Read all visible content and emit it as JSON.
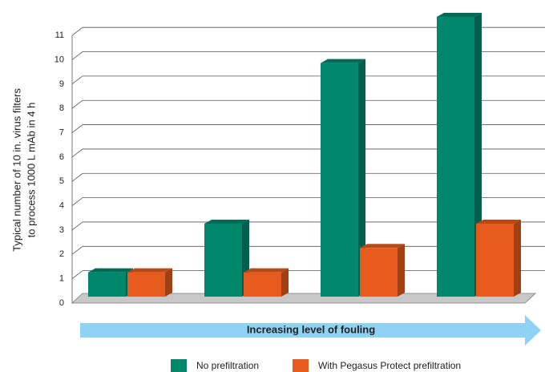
{
  "chart_data": {
    "type": "bar3d",
    "y_label": [
      "Typical number of 10 in. virus  filters",
      "to process 1000 L mAb in 4 h"
    ],
    "annotation": "Increasing level of fouling",
    "categories": [
      null,
      null,
      null,
      null
    ],
    "series": [
      {
        "name": "No prefiltration",
        "color": "#00876c",
        "values": [
          1,
          3,
          9.6,
          11.5
        ]
      },
      {
        "name": "With Pegasus Protect prefiltration",
        "color": "#e85b1e",
        "values": [
          1,
          1,
          2,
          3
        ]
      }
    ],
    "ylim": [
      0,
      11.5
    ],
    "yticks": [
      0,
      1,
      2,
      3,
      4,
      5,
      6,
      7,
      8,
      9,
      10,
      11
    ],
    "grid": true
  }
}
